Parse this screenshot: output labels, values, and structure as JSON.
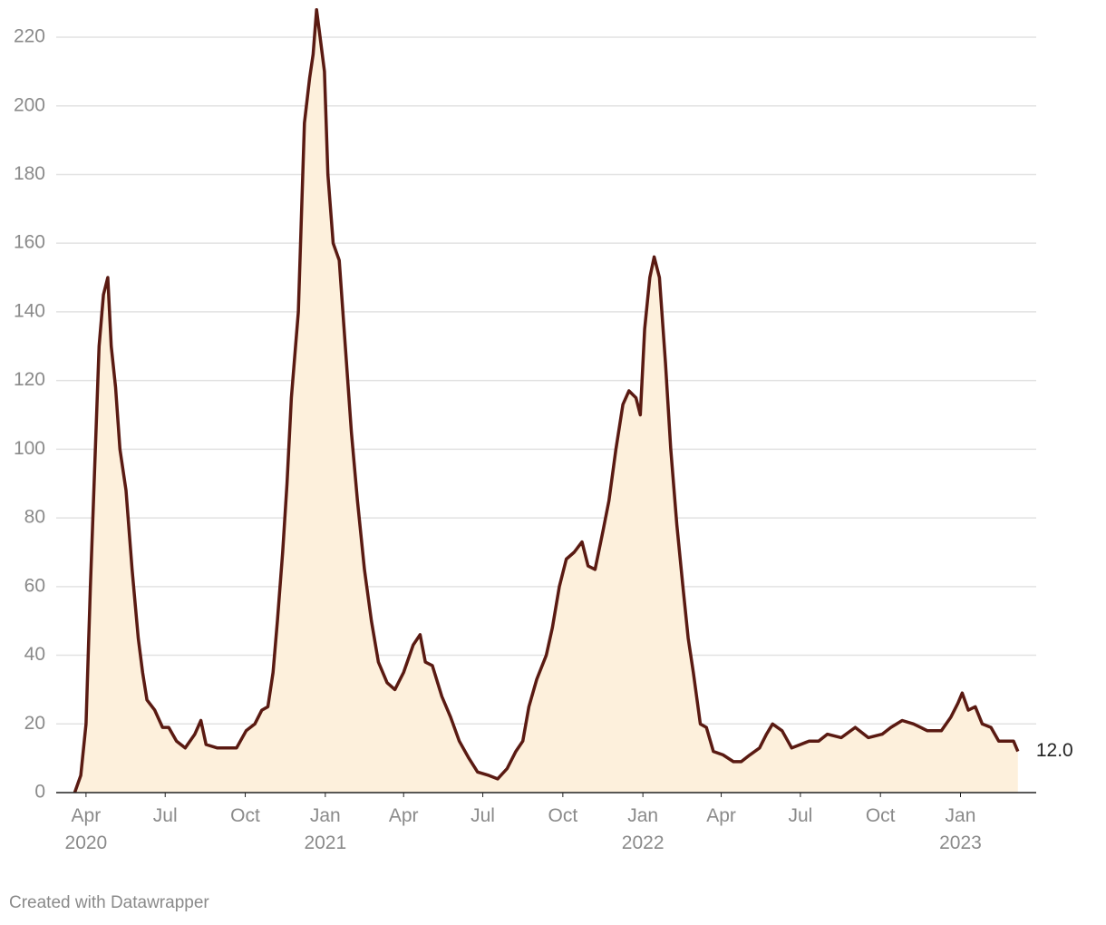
{
  "chart_data": {
    "type": "area",
    "footer": "Created with Datawrapper",
    "x": [
      "2020-03-19",
      "2020-03-26",
      "2020-04-01",
      "2020-04-06",
      "2020-04-11",
      "2020-04-16",
      "2020-04-21",
      "2020-04-26",
      "2020-04-30",
      "2020-05-05",
      "2020-05-10",
      "2020-05-17",
      "2020-05-24",
      "2020-05-31",
      "2020-06-05",
      "2020-06-10",
      "2020-06-19",
      "2020-06-28",
      "2020-07-05",
      "2020-07-14",
      "2020-07-24",
      "2020-08-04",
      "2020-08-11",
      "2020-08-17",
      "2020-08-30",
      "2020-09-11",
      "2020-09-21",
      "2020-10-02",
      "2020-10-12",
      "2020-10-20",
      "2020-10-27",
      "2020-11-02",
      "2020-11-07",
      "2020-11-13",
      "2020-11-18",
      "2020-11-23",
      "2020-12-01",
      "2020-12-08",
      "2020-12-14",
      "2020-12-18",
      "2020-12-22",
      "2020-12-26",
      "2020-12-31",
      "2021-01-04",
      "2021-01-10",
      "2021-01-17",
      "2021-01-24",
      "2021-01-31",
      "2021-02-07",
      "2021-02-15",
      "2021-02-23",
      "2021-03-03",
      "2021-03-13",
      "2021-03-22",
      "2021-04-01",
      "2021-04-12",
      "2021-04-20",
      "2021-04-26",
      "2021-05-04",
      "2021-05-15",
      "2021-05-25",
      "2021-06-04",
      "2021-06-15",
      "2021-06-25",
      "2021-07-08",
      "2021-07-18",
      "2021-07-29",
      "2021-08-08",
      "2021-08-16",
      "2021-08-23",
      "2021-09-01",
      "2021-09-12",
      "2021-09-19",
      "2021-09-27",
      "2021-10-05",
      "2021-10-14",
      "2021-10-23",
      "2021-10-30",
      "2021-11-07",
      "2021-11-16",
      "2021-11-23",
      "2021-12-01",
      "2021-12-09",
      "2021-12-16",
      "2021-12-24",
      "2021-12-29",
      "2022-01-03",
      "2022-01-09",
      "2022-01-14",
      "2022-01-20",
      "2022-01-27",
      "2022-02-02",
      "2022-02-09",
      "2022-02-16",
      "2022-02-22",
      "2022-02-28",
      "2022-03-08",
      "2022-03-15",
      "2022-03-23",
      "2022-04-03",
      "2022-04-15",
      "2022-04-24",
      "2022-05-04",
      "2022-05-15",
      "2022-05-23",
      "2022-05-30",
      "2022-06-10",
      "2022-06-21",
      "2022-07-01",
      "2022-07-11",
      "2022-07-22",
      "2022-08-01",
      "2022-08-17",
      "2022-09-02",
      "2022-09-17",
      "2022-10-03",
      "2022-10-13",
      "2022-10-26",
      "2022-11-08",
      "2022-11-24",
      "2022-12-10",
      "2022-12-21",
      "2022-12-29",
      "2023-01-03",
      "2023-01-10",
      "2023-01-18",
      "2023-01-26",
      "2023-02-05",
      "2023-02-14",
      "2023-02-23",
      "2023-03-03",
      "2023-03-08"
    ],
    "values": [
      0,
      5,
      20,
      60,
      95,
      130,
      145,
      150,
      130,
      118,
      100,
      88,
      65,
      45,
      35,
      27,
      24,
      19,
      19,
      15,
      13,
      17,
      21,
      14,
      13,
      13,
      13,
      18,
      20,
      24,
      25,
      35,
      50,
      70,
      90,
      115,
      140,
      195,
      208,
      215,
      228,
      220,
      210,
      180,
      160,
      155,
      130,
      105,
      85,
      65,
      50,
      38,
      32,
      30,
      35,
      43,
      46,
      38,
      37,
      28,
      22,
      15,
      10,
      6,
      5,
      4,
      7,
      12,
      15,
      25,
      33,
      40,
      48,
      60,
      68,
      70,
      73,
      66,
      65,
      76,
      85,
      100,
      113,
      117,
      115,
      110,
      135,
      150,
      156,
      150,
      125,
      100,
      78,
      60,
      45,
      35,
      20,
      19,
      12,
      11,
      9,
      9,
      11,
      13,
      17,
      20,
      18,
      13,
      14,
      15,
      15,
      17,
      16,
      19,
      16,
      17,
      19,
      21,
      20,
      18,
      18,
      22,
      26,
      29,
      24,
      25,
      20,
      19,
      15,
      15,
      15,
      12
    ],
    "line_color": "#5a1a12",
    "fill_color": "#fdf0dc",
    "annotations": [
      {
        "x": "2023-03-08",
        "y": 12,
        "text": "12.0"
      }
    ],
    "xlim": [
      "2020-03-04",
      "2023-03-29"
    ],
    "xticks": [
      {
        "value": "2020-04-01",
        "label": "Apr\n2020"
      },
      {
        "value": "2020-07-01",
        "label": "Jul"
      },
      {
        "value": "2020-10-01",
        "label": "Oct"
      },
      {
        "value": "2021-01-01",
        "label": "Jan\n2021"
      },
      {
        "value": "2021-04-01",
        "label": "Apr"
      },
      {
        "value": "2021-07-01",
        "label": "Jul"
      },
      {
        "value": "2021-10-01",
        "label": "Oct"
      },
      {
        "value": "2022-01-01",
        "label": "Jan\n2022"
      },
      {
        "value": "2022-04-01",
        "label": "Apr"
      },
      {
        "value": "2022-07-01",
        "label": "Jul"
      },
      {
        "value": "2022-10-01",
        "label": "Oct"
      },
      {
        "value": "2023-01-01",
        "label": "Jan\n2023"
      }
    ],
    "ylim": [
      0,
      228
    ],
    "yticks": [
      0,
      20,
      40,
      60,
      80,
      100,
      120,
      140,
      160,
      180,
      200,
      220
    ],
    "grid": true
  }
}
